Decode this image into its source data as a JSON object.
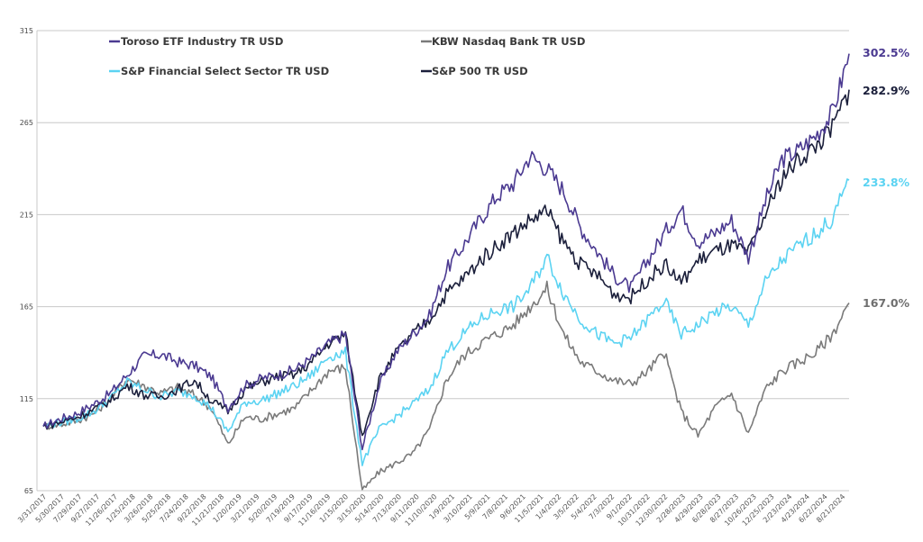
{
  "chart_data": {
    "type": "line",
    "title": "",
    "xlabel": "",
    "ylabel": "",
    "ylim": [
      65,
      315
    ],
    "yticks": [
      65,
      115,
      165,
      215,
      265,
      315
    ],
    "grid": true,
    "legend_position": "top-left",
    "x_range": [
      "3/31/2017",
      "10/31/2024"
    ],
    "xticks": [
      "3/31/2017",
      "5/30/2017",
      "7/29/2017",
      "9/27/2017",
      "11/26/2017",
      "1/25/2018",
      "3/26/2018",
      "5/25/2018",
      "7/24/2018",
      "9/22/2018",
      "11/21/2018",
      "1/20/2019",
      "3/21/2019",
      "5/20/2019",
      "7/19/2019",
      "9/17/2019",
      "11/16/2019",
      "1/15/2020",
      "3/15/2020",
      "5/14/2020",
      "7/13/2020",
      "9/11/2020",
      "11/10/2020",
      "1/9/2021",
      "3/10/2021",
      "5/9/2021",
      "7/8/2021",
      "9/6/2021",
      "11/5/2021",
      "1/4/2022",
      "3/5/2022",
      "5/4/2022",
      "7/3/2022",
      "9/1/2022",
      "10/31/2022",
      "12/30/2022",
      "2/28/2023",
      "4/29/2023",
      "6/28/2023",
      "8/27/2023",
      "10/26/2023",
      "12/25/2023",
      "2/23/2024",
      "4/23/2024",
      "6/22/2024",
      "8/21/2024"
    ],
    "x": [
      "2017-03",
      "2017-05",
      "2017-07",
      "2017-09",
      "2017-11",
      "2018-01",
      "2018-03",
      "2018-05",
      "2018-07",
      "2018-09",
      "2018-11",
      "2019-01",
      "2019-03",
      "2019-05",
      "2019-07",
      "2019-09",
      "2019-11",
      "2020-01",
      "2020-02",
      "2020-03",
      "2020-05",
      "2020-07",
      "2020-09",
      "2020-11",
      "2021-01",
      "2021-03",
      "2021-05",
      "2021-07",
      "2021-09",
      "2021-11",
      "2022-01",
      "2022-03",
      "2022-05",
      "2022-07",
      "2022-09",
      "2022-10",
      "2022-12",
      "2023-02",
      "2023-03",
      "2023-05",
      "2023-07",
      "2023-08",
      "2023-10",
      "2023-12",
      "2024-02",
      "2024-04",
      "2024-06",
      "2024-08",
      "2024-10"
    ],
    "series": [
      {
        "name": "Toroso ETF Industry TR USD",
        "color": "#4b3a91",
        "end_label": "302.5%",
        "values": [
          100,
          104,
          107,
          112,
          118,
          128,
          138,
          139,
          135,
          133,
          127,
          110,
          122,
          126,
          128,
          131,
          137,
          145,
          150,
          88,
          122,
          140,
          150,
          160,
          185,
          198,
          212,
          225,
          232,
          247,
          240,
          228,
          208,
          195,
          182,
          175,
          190,
          205,
          218,
          200,
          205,
          212,
          192,
          222,
          245,
          250,
          258,
          270,
          302.5
        ]
      },
      {
        "name": "KBW Nasdaq Bank TR USD",
        "color": "#7a7a7a",
        "end_label": "167.0%",
        "values": [
          100,
          101,
          103,
          107,
          115,
          126,
          122,
          118,
          121,
          117,
          110,
          90,
          105,
          104,
          107,
          110,
          120,
          130,
          132,
          65,
          75,
          80,
          85,
          98,
          125,
          138,
          145,
          150,
          155,
          165,
          175,
          150,
          135,
          130,
          125,
          123,
          130,
          140,
          108,
          95,
          110,
          118,
          96,
          120,
          130,
          135,
          140,
          150,
          167.0
        ]
      },
      {
        "name": "S&P Financial Select Sector TR USD",
        "color": "#5bd3f2",
        "end_label": "233.8%",
        "values": [
          100,
          102,
          104,
          108,
          115,
          124,
          120,
          116,
          119,
          117,
          110,
          97,
          113,
          114,
          118,
          122,
          128,
          138,
          140,
          80,
          98,
          105,
          112,
          120,
          140,
          150,
          158,
          163,
          165,
          175,
          192,
          172,
          158,
          150,
          145,
          148,
          158,
          168,
          150,
          155,
          162,
          165,
          155,
          178,
          190,
          198,
          205,
          212,
          233.8
        ]
      },
      {
        "name": "S&P 500 TR USD",
        "color": "#1b1f3b",
        "end_label": "282.9%",
        "values": [
          100,
          102,
          105,
          109,
          114,
          122,
          117,
          116,
          120,
          125,
          114,
          108,
          120,
          124,
          127,
          128,
          135,
          145,
          150,
          95,
          125,
          140,
          150,
          158,
          172,
          180,
          190,
          198,
          205,
          212,
          217,
          200,
          188,
          182,
          172,
          170,
          180,
          188,
          178,
          190,
          195,
          198,
          194,
          215,
          235,
          245,
          252,
          262,
          282.9
        ]
      }
    ]
  }
}
